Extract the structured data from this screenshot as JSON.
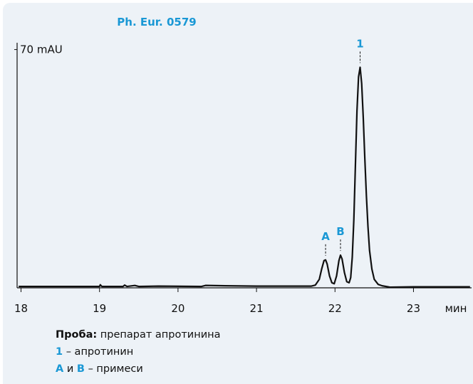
{
  "chart_data": {
    "type": "line",
    "title": "Ph. Eur. 0579",
    "x": [
      17.97,
      19.0,
      19.01,
      19.03,
      19.3,
      19.32,
      19.35,
      19.45,
      19.5,
      19.75,
      20.3,
      20.35,
      20.6,
      21.0,
      21.5,
      21.7,
      21.75,
      21.8,
      21.83,
      21.86,
      21.88,
      21.9,
      21.93,
      21.96,
      21.99,
      22.02,
      22.05,
      22.07,
      22.09,
      22.12,
      22.15,
      22.18,
      22.2,
      22.22,
      22.24,
      22.26,
      22.28,
      22.3,
      22.32,
      22.34,
      22.36,
      22.38,
      22.4,
      22.42,
      22.44,
      22.47,
      22.5,
      22.55,
      22.6,
      22.7,
      23.0,
      23.5,
      23.72
    ],
    "values": [
      0.4,
      0.4,
      0.9,
      0.4,
      0.4,
      0.8,
      0.4,
      0.7,
      0.4,
      0.5,
      0.4,
      0.7,
      0.6,
      0.5,
      0.5,
      0.5,
      0.8,
      2.5,
      5.5,
      8.0,
      8.2,
      7.0,
      3.5,
      1.5,
      1.2,
      3.5,
      8.0,
      9.6,
      8.5,
      4.5,
      1.8,
      1.5,
      3.0,
      9.0,
      20.0,
      36.0,
      52.0,
      62.0,
      64.8,
      60.0,
      50.0,
      38.0,
      27.0,
      18.0,
      11.0,
      5.5,
      2.5,
      1.0,
      0.6,
      0.2,
      0.3,
      0.3,
      0.3
    ],
    "color": "#111111",
    "xlim": [
      17.95,
      23.74
    ],
    "xticks": [
      18,
      19,
      20,
      21,
      22,
      23
    ],
    "xlabel": "мин",
    "ylim": [
      0,
      72
    ],
    "yticks": [
      {
        "value": 70,
        "label": "70 mAU"
      }
    ],
    "peak_labels": [
      {
        "text": "A",
        "x": 21.88
      },
      {
        "text": "B",
        "x": 22.07
      },
      {
        "text": "1",
        "x": 22.32
      }
    ]
  },
  "notes": [
    [
      "Проба:",
      "препарат апротинина"
    ],
    [
      "1",
      "– апротинин"
    ],
    [
      "A",
      "и",
      "B",
      "– примеси"
    ]
  ]
}
